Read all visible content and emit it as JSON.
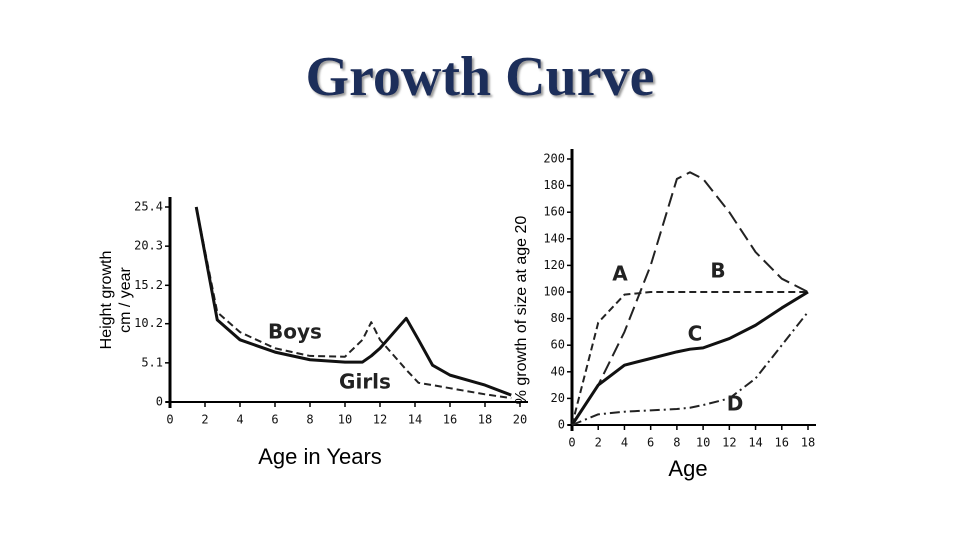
{
  "title": "Growth Curve",
  "chart_data": [
    {
      "type": "line",
      "x_label": "Age in Years",
      "y_label": [
        "Height growth",
        "cm / year"
      ],
      "x": [
        1.5,
        2.7,
        4,
        6,
        8,
        10,
        11,
        11.5,
        12,
        13.5,
        14.2,
        15,
        16,
        18,
        19.5
      ],
      "series": [
        {
          "name": "Boys",
          "color": "#222222",
          "style": "dashed",
          "values": [
            25.4,
            11.7,
            9.1,
            7.0,
            6.0,
            5.9,
            8.1,
            10.4,
            8.1,
            4.2,
            2.5,
            2.2,
            1.8,
            1.0,
            0.5
          ]
        },
        {
          "name": "Girls",
          "color": "#111111",
          "style": "solid",
          "values": [
            25.4,
            10.7,
            8.1,
            6.5,
            5.5,
            5.2,
            5.2,
            6.0,
            7.0,
            10.9,
            8.1,
            4.8,
            3.5,
            2.2,
            0.9
          ]
        }
      ],
      "xlim": [
        0,
        20
      ],
      "xticks": [
        0,
        2,
        4,
        6,
        8,
        10,
        12,
        14,
        16,
        18,
        20
      ],
      "ylim": [
        0,
        25.4
      ],
      "yticks": [
        0,
        5.1,
        10.2,
        15.2,
        20.3,
        25.4
      ]
    },
    {
      "type": "line",
      "x_label": "Age",
      "y_label": [
        "% growth of size at age 20"
      ],
      "x": [
        0,
        2,
        4,
        6,
        8,
        9,
        10,
        12,
        14,
        16,
        18
      ],
      "series": [
        {
          "name": "A",
          "color": "#222222",
          "style": "dashed",
          "values": [
            0,
            77,
            98,
            100,
            100,
            100,
            100,
            100,
            100,
            100,
            100
          ]
        },
        {
          "name": "B",
          "color": "#222222",
          "style": "longdash",
          "values": [
            0,
            30,
            70,
            120,
            185,
            190,
            185,
            160,
            130,
            110,
            100
          ]
        },
        {
          "name": "C",
          "color": "#111111",
          "style": "solid",
          "values": [
            0,
            30,
            45,
            50,
            55,
            57,
            58,
            65,
            75,
            88,
            100
          ]
        },
        {
          "name": "D",
          "color": "#222222",
          "style": "dashdot",
          "values": [
            0,
            8,
            10,
            11,
            12,
            13,
            15,
            20,
            35,
            60,
            85
          ]
        }
      ],
      "xlim": [
        0,
        18
      ],
      "xticks": [
        0,
        2,
        4,
        6,
        8,
        10,
        12,
        14,
        16,
        18
      ],
      "ylim": [
        0,
        200
      ],
      "yticks": [
        0,
        20,
        40,
        60,
        80,
        100,
        120,
        140,
        160,
        180,
        200
      ]
    }
  ]
}
